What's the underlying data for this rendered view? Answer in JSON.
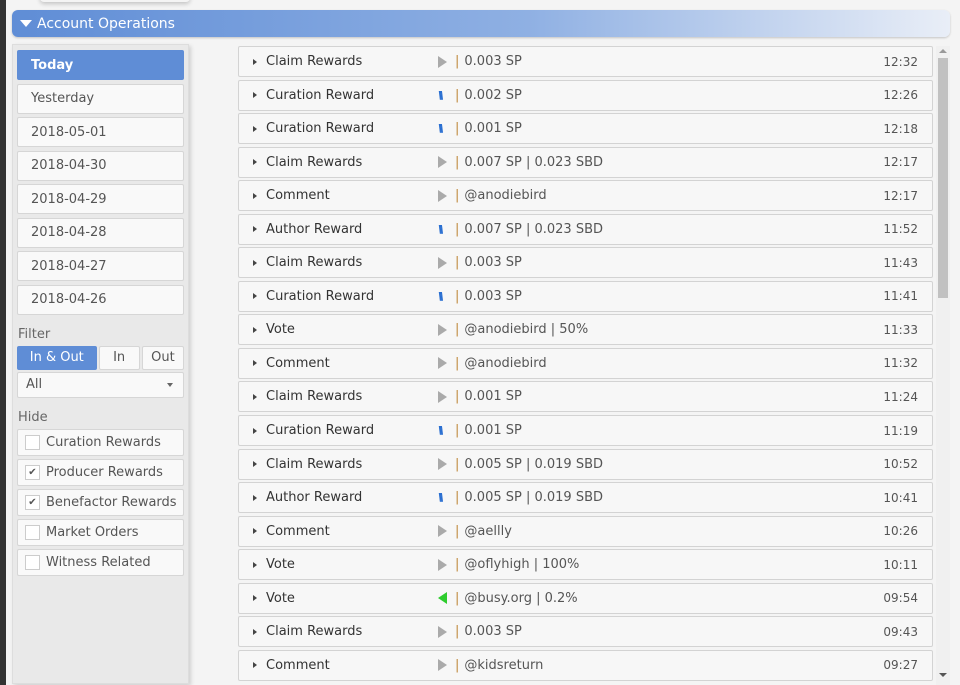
{
  "header": {
    "title": "Account Operations"
  },
  "sidebar": {
    "days": [
      "Today",
      "Yesterday",
      "2018-05-01",
      "2018-04-30",
      "2018-04-29",
      "2018-04-28",
      "2018-04-27",
      "2018-04-26"
    ],
    "active_day": "Today",
    "filter_label": "Filter",
    "direction": [
      "In & Out",
      "In",
      "Out"
    ],
    "direction_selected": "In & Out",
    "type_select": "All",
    "hide_label": "Hide",
    "hide": [
      {
        "label": "Curation Rewards",
        "checked": false
      },
      {
        "label": "Producer Rewards",
        "checked": true
      },
      {
        "label": "Benefactor Rewards",
        "checked": true
      },
      {
        "label": "Market Orders",
        "checked": false
      },
      {
        "label": "Witness Related",
        "checked": false
      }
    ]
  },
  "colors": {
    "accent": "#5f8dd6",
    "steem": "#2a6fd1",
    "incoming": "#2ecc2e",
    "neutral": "#aaaaaa",
    "separator": "#c08a3e"
  },
  "operations": [
    {
      "type": "Claim Rewards",
      "icon": "play",
      "detail": "0.003 SP",
      "time": "12:32"
    },
    {
      "type": "Curation Reward",
      "icon": "steem",
      "detail": "0.002 SP",
      "time": "12:26"
    },
    {
      "type": "Curation Reward",
      "icon": "steem",
      "detail": "0.001 SP",
      "time": "12:18"
    },
    {
      "type": "Claim Rewards",
      "icon": "play",
      "detail": "0.007 SP | 0.023 SBD",
      "time": "12:17"
    },
    {
      "type": "Comment",
      "icon": "play",
      "detail": "@anodiebird",
      "time": "12:17"
    },
    {
      "type": "Author Reward",
      "icon": "steem",
      "detail": "0.007 SP | 0.023 SBD",
      "time": "11:52"
    },
    {
      "type": "Claim Rewards",
      "icon": "play",
      "detail": "0.003 SP",
      "time": "11:43"
    },
    {
      "type": "Curation Reward",
      "icon": "steem",
      "detail": "0.003 SP",
      "time": "11:41"
    },
    {
      "type": "Vote",
      "icon": "play",
      "detail": "@anodiebird | 50%",
      "time": "11:33"
    },
    {
      "type": "Comment",
      "icon": "play",
      "detail": "@anodiebird",
      "time": "11:32"
    },
    {
      "type": "Claim Rewards",
      "icon": "play",
      "detail": "0.001 SP",
      "time": "11:24"
    },
    {
      "type": "Curation Reward",
      "icon": "steem",
      "detail": "0.001 SP",
      "time": "11:19"
    },
    {
      "type": "Claim Rewards",
      "icon": "play",
      "detail": "0.005 SP | 0.019 SBD",
      "time": "10:52"
    },
    {
      "type": "Author Reward",
      "icon": "steem",
      "detail": "0.005 SP | 0.019 SBD",
      "time": "10:41"
    },
    {
      "type": "Comment",
      "icon": "play",
      "detail": "@aellly",
      "time": "10:26"
    },
    {
      "type": "Vote",
      "icon": "play",
      "detail": "@oflyhigh | 100%",
      "time": "10:11"
    },
    {
      "type": "Vote",
      "icon": "back",
      "detail": "@busy.org | 0.2%",
      "time": "09:54"
    },
    {
      "type": "Claim Rewards",
      "icon": "play",
      "detail": "0.003 SP",
      "time": "09:43"
    },
    {
      "type": "Comment",
      "icon": "play",
      "detail": "@kidsreturn",
      "time": "09:27"
    }
  ]
}
